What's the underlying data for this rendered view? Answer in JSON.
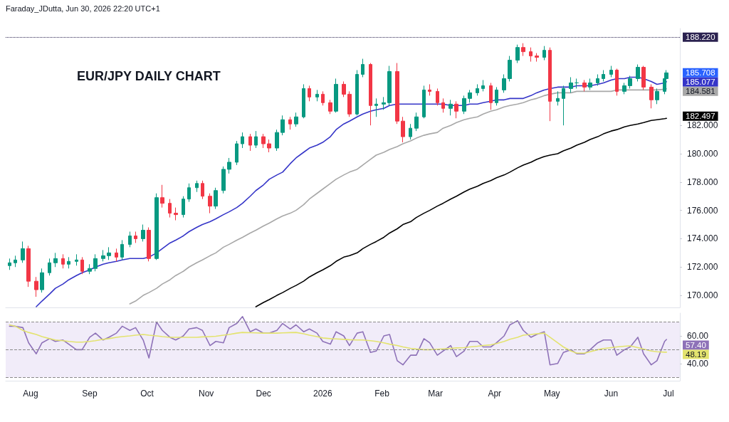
{
  "chart_data": [
    {
      "type": "candlestick",
      "title": "EUR/JPY DAILY CHART",
      "annotations": [
        "Faraday_JDutta, Jun 30, 2026 22:20 UTC+1",
        {
          "text": "185.708",
          "x": "2026-06-30",
          "y": 185.708
        },
        {
          "text": "185.077",
          "x": "2026-06-30",
          "y": 185.077
        },
        {
          "text": "184.581",
          "x": "2026-06-30",
          "y": 184.581
        },
        {
          "text": "182.497",
          "x": "2026-06-30",
          "y": 182.497
        }
      ],
      "x": [
        "2025-07-21",
        "2025-07-24",
        "2025-07-28",
        "2025-07-31",
        "2025-08-04",
        "2025-08-07",
        "2025-08-11",
        "2025-08-14",
        "2025-08-18",
        "2025-08-21",
        "2025-08-25",
        "2025-08-28",
        "2025-09-01",
        "2025-09-04",
        "2025-09-08",
        "2025-09-11",
        "2025-09-15",
        "2025-09-18",
        "2025-09-22",
        "2025-09-25",
        "2025-09-29",
        "2025-10-02",
        "2025-10-06",
        "2025-10-09",
        "2025-10-13",
        "2025-10-16",
        "2025-10-20",
        "2025-10-23",
        "2025-10-27",
        "2025-10-30",
        "2025-11-03",
        "2025-11-06",
        "2025-11-10",
        "2025-11-13",
        "2025-11-17",
        "2025-11-20",
        "2025-11-24",
        "2025-11-27",
        "2025-12-01",
        "2025-12-04",
        "2025-12-08",
        "2025-12-11",
        "2025-12-15",
        "2025-12-18",
        "2025-12-22",
        "2025-12-25",
        "2025-12-29",
        "2026-01-01",
        "2026-01-05",
        "2026-01-08",
        "2026-01-12",
        "2026-01-15",
        "2026-01-19",
        "2026-01-22",
        "2026-01-26",
        "2026-01-29",
        "2026-02-02",
        "2026-02-05",
        "2026-02-09",
        "2026-02-12",
        "2026-02-16",
        "2026-02-19",
        "2026-02-23",
        "2026-02-26",
        "2026-03-02",
        "2026-03-05",
        "2026-03-09",
        "2026-03-12",
        "2026-03-16",
        "2026-03-19",
        "2026-03-23",
        "2026-03-26",
        "2026-03-30",
        "2026-04-02",
        "2026-04-06",
        "2026-04-09",
        "2026-04-13",
        "2026-04-16",
        "2026-04-20",
        "2026-04-23",
        "2026-04-27",
        "2026-04-30",
        "2026-05-04",
        "2026-05-07",
        "2026-05-11",
        "2026-05-14",
        "2026-05-18",
        "2026-05-21",
        "2026-05-25",
        "2026-05-28",
        "2026-06-01",
        "2026-06-04",
        "2026-06-08",
        "2026-06-11",
        "2026-06-15",
        "2026-06-18",
        "2026-06-22",
        "2026-06-25",
        "2026-06-29",
        "2026-06-30"
      ],
      "ohlc": [
        [
          172.1,
          172.6,
          171.8,
          172.3
        ],
        [
          172.3,
          172.8,
          172.0,
          172.5
        ],
        [
          172.5,
          173.8,
          172.3,
          173.3
        ],
        [
          173.3,
          173.5,
          170.6,
          171.0
        ],
        [
          171.0,
          171.3,
          169.9,
          170.4
        ],
        [
          170.4,
          171.9,
          170.2,
          171.6
        ],
        [
          171.6,
          172.6,
          171.4,
          172.3
        ],
        [
          172.3,
          173.0,
          172.0,
          172.6
        ],
        [
          172.6,
          172.9,
          171.9,
          172.2
        ],
        [
          172.2,
          172.7,
          171.9,
          172.4
        ],
        [
          172.4,
          172.9,
          172.1,
          172.5
        ],
        [
          172.5,
          172.7,
          171.5,
          171.7
        ],
        [
          171.7,
          172.2,
          171.5,
          171.9
        ],
        [
          171.9,
          172.9,
          171.7,
          172.6
        ],
        [
          172.6,
          173.2,
          172.4,
          172.8
        ],
        [
          172.8,
          173.4,
          172.5,
          173.0
        ],
        [
          173.0,
          173.3,
          172.4,
          172.7
        ],
        [
          172.7,
          173.9,
          172.5,
          173.6
        ],
        [
          173.6,
          174.5,
          173.4,
          174.2
        ],
        [
          174.2,
          174.5,
          173.7,
          174.0
        ],
        [
          174.0,
          175.0,
          173.8,
          174.6
        ],
        [
          174.6,
          174.8,
          172.4,
          172.6
        ],
        [
          172.6,
          177.2,
          172.5,
          176.9
        ],
        [
          176.9,
          177.8,
          176.2,
          176.5
        ],
        [
          176.5,
          176.8,
          175.5,
          175.8
        ],
        [
          175.8,
          176.2,
          175.3,
          175.7
        ],
        [
          175.7,
          177.0,
          175.5,
          176.8
        ],
        [
          176.8,
          177.9,
          176.6,
          177.6
        ],
        [
          177.6,
          178.1,
          177.3,
          177.9
        ],
        [
          177.9,
          178.1,
          176.8,
          177.0
        ],
        [
          177.0,
          177.2,
          175.8,
          176.3
        ],
        [
          176.3,
          177.6,
          176.1,
          177.4
        ],
        [
          177.4,
          179.1,
          177.2,
          178.9
        ],
        [
          178.9,
          179.7,
          178.6,
          179.4
        ],
        [
          179.4,
          180.9,
          179.2,
          180.7
        ],
        [
          180.7,
          181.5,
          180.4,
          181.2
        ],
        [
          181.2,
          181.4,
          180.2,
          180.6
        ],
        [
          180.6,
          181.6,
          180.4,
          181.2
        ],
        [
          181.2,
          181.4,
          180.4,
          180.7
        ],
        [
          180.7,
          181.0,
          180.1,
          180.4
        ],
        [
          180.4,
          181.7,
          180.2,
          181.5
        ],
        [
          181.5,
          182.7,
          181.3,
          182.4
        ],
        [
          182.4,
          182.6,
          181.7,
          182.1
        ],
        [
          182.1,
          182.9,
          181.9,
          182.6
        ],
        [
          182.6,
          184.9,
          182.5,
          184.6
        ],
        [
          184.6,
          184.8,
          183.7,
          184.0
        ],
        [
          184.0,
          184.5,
          183.7,
          184.2
        ],
        [
          184.2,
          184.4,
          183.4,
          183.6
        ],
        [
          183.6,
          183.8,
          182.8,
          183.0
        ],
        [
          183.0,
          185.3,
          182.9,
          184.9
        ],
        [
          184.9,
          185.1,
          184.0,
          184.2
        ],
        [
          184.2,
          184.4,
          182.6,
          182.8
        ],
        [
          182.8,
          185.9,
          182.7,
          185.6
        ],
        [
          185.6,
          186.7,
          185.4,
          186.3
        ],
        [
          186.3,
          186.4,
          182.0,
          183.4
        ],
        [
          183.4,
          183.9,
          182.6,
          183.5
        ],
        [
          183.5,
          184.0,
          183.1,
          183.6
        ],
        [
          183.6,
          186.2,
          183.4,
          185.8
        ],
        [
          185.8,
          186.4,
          182.1,
          182.3
        ],
        [
          182.3,
          182.6,
          180.8,
          181.2
        ],
        [
          181.2,
          182.1,
          181.0,
          181.8
        ],
        [
          181.8,
          182.9,
          181.6,
          182.6
        ],
        [
          182.6,
          184.8,
          182.5,
          184.5
        ],
        [
          184.5,
          184.9,
          184.1,
          184.4
        ],
        [
          184.4,
          184.6,
          183.4,
          183.6
        ],
        [
          183.6,
          183.9,
          182.9,
          183.2
        ],
        [
          183.2,
          183.8,
          182.7,
          183.5
        ],
        [
          183.5,
          183.7,
          182.5,
          183.0
        ],
        [
          183.0,
          184.1,
          182.8,
          183.9
        ],
        [
          183.9,
          184.5,
          183.6,
          184.3
        ],
        [
          184.3,
          184.9,
          184.1,
          184.6
        ],
        [
          184.6,
          185.2,
          184.4,
          184.8
        ],
        [
          184.8,
          185.0,
          183.1,
          183.6
        ],
        [
          183.6,
          184.7,
          183.4,
          184.5
        ],
        [
          184.5,
          185.6,
          184.3,
          185.3
        ],
        [
          185.3,
          186.9,
          185.1,
          186.6
        ],
        [
          186.6,
          187.7,
          186.4,
          187.5
        ],
        [
          187.5,
          187.8,
          186.9,
          187.2
        ],
        [
          187.2,
          187.5,
          186.5,
          186.9
        ],
        [
          186.9,
          187.1,
          186.5,
          186.8
        ],
        [
          186.8,
          187.6,
          186.6,
          187.3
        ],
        [
          187.3,
          187.5,
          182.3,
          183.7
        ],
        [
          183.7,
          184.4,
          183.4,
          183.9
        ],
        [
          183.9,
          184.8,
          182.0,
          184.6
        ],
        [
          184.6,
          185.4,
          184.3,
          185.0
        ],
        [
          185.0,
          185.3,
          184.6,
          185.0
        ],
        [
          185.0,
          185.2,
          184.4,
          184.7
        ],
        [
          184.7,
          185.3,
          184.5,
          185.0
        ],
        [
          185.0,
          185.6,
          184.8,
          185.3
        ],
        [
          185.3,
          185.9,
          185.1,
          185.6
        ],
        [
          185.6,
          186.2,
          185.4,
          185.9
        ],
        [
          185.9,
          186.0,
          184.1,
          184.4
        ],
        [
          184.4,
          185.0,
          184.2,
          184.8
        ],
        [
          184.8,
          185.5,
          184.6,
          185.3
        ],
        [
          185.3,
          186.3,
          185.1,
          186.1
        ],
        [
          186.1,
          186.2,
          184.5,
          184.7
        ],
        [
          184.7,
          184.9,
          183.2,
          183.8
        ],
        [
          183.8,
          184.6,
          183.5,
          184.4
        ],
        [
          184.4,
          185.5,
          184.2,
          185.3
        ],
        [
          185.3,
          185.9,
          185.2,
          185.708
        ]
      ],
      "series": [
        {
          "type": "line",
          "color": "#3535c8",
          "values": [
            null,
            null,
            null,
            null,
            169.2,
            169.6,
            170.1,
            170.5,
            170.8,
            171.1,
            171.4,
            171.6,
            171.8,
            172.0,
            172.2,
            172.3,
            172.4,
            172.5,
            172.6,
            172.6,
            172.6,
            172.7,
            173.0,
            173.3,
            173.7,
            173.9,
            174.2,
            174.5,
            174.8,
            175.0,
            175.2,
            175.4,
            175.7,
            175.9,
            176.2,
            176.5,
            177.0,
            177.4,
            177.8,
            178.2,
            178.5,
            178.7,
            179.3,
            179.7,
            180.1,
            180.4,
            180.6,
            180.8,
            181.2,
            181.7,
            182.1,
            182.3,
            182.6,
            182.8,
            183.0,
            183.1,
            183.2,
            183.4,
            183.5,
            183.5,
            183.5,
            183.5,
            183.5,
            183.5,
            183.5,
            183.5,
            183.4,
            183.4,
            183.4,
            183.5,
            183.5,
            183.6,
            183.7,
            183.8,
            183.8,
            183.9,
            183.9,
            183.9,
            184.1,
            184.3,
            184.5,
            184.6,
            184.7,
            184.7,
            184.7,
            184.8,
            184.8,
            184.8,
            184.9,
            185.0,
            185.2,
            185.3,
            185.3,
            185.4,
            185.4,
            185.3,
            185.1,
            184.9,
            185.0,
            185.08
          ]
        },
        {
          "type": "line",
          "color": "#a8a8a8",
          "values": [
            null,
            null,
            null,
            null,
            null,
            null,
            null,
            null,
            null,
            null,
            null,
            null,
            null,
            null,
            null,
            null,
            null,
            null,
            169.4,
            169.6,
            170.0,
            170.2,
            170.5,
            170.8,
            171.1,
            171.4,
            171.7,
            172.0,
            172.3,
            172.5,
            172.8,
            173.0,
            173.4,
            173.6,
            173.9,
            174.1,
            174.4,
            174.6,
            174.9,
            175.1,
            175.4,
            175.6,
            175.8,
            176.0,
            176.4,
            176.8,
            177.2,
            177.5,
            177.9,
            178.2,
            178.5,
            178.7,
            178.9,
            179.2,
            179.6,
            179.9,
            180.1,
            180.3,
            180.5,
            180.7,
            180.9,
            181.1,
            181.3,
            181.4,
            181.5,
            181.8,
            182.0,
            182.2,
            182.4,
            182.5,
            182.6,
            182.8,
            183.0,
            183.1,
            183.3,
            183.4,
            183.5,
            183.6,
            183.8,
            183.9,
            184.1,
            184.2,
            184.3,
            184.3,
            184.3,
            184.4,
            184.4,
            184.4,
            184.4,
            184.4,
            184.4,
            184.5,
            184.5,
            184.5,
            184.5,
            184.5,
            184.5,
            184.5,
            184.55,
            184.58
          ]
        },
        {
          "type": "line",
          "color": "#000000",
          "values": [
            null,
            null,
            null,
            null,
            null,
            null,
            null,
            null,
            null,
            null,
            null,
            null,
            null,
            null,
            null,
            null,
            null,
            null,
            null,
            null,
            null,
            null,
            null,
            null,
            null,
            null,
            null,
            null,
            null,
            null,
            null,
            null,
            null,
            null,
            null,
            null,
            null,
            169.2,
            169.5,
            169.7,
            170.0,
            170.2,
            170.5,
            170.7,
            171.0,
            171.3,
            171.6,
            171.8,
            172.1,
            172.4,
            172.7,
            172.8,
            173.0,
            173.3,
            173.6,
            173.8,
            174.1,
            174.4,
            174.7,
            175.0,
            175.2,
            175.5,
            175.8,
            176.0,
            176.3,
            176.5,
            176.8,
            177.0,
            177.3,
            177.5,
            177.7,
            177.9,
            178.1,
            178.3,
            178.5,
            178.7,
            179.0,
            179.2,
            179.4,
            179.6,
            179.8,
            179.9,
            180.0,
            180.2,
            180.4,
            180.6,
            180.8,
            181.0,
            181.2,
            181.4,
            181.6,
            181.7,
            181.9,
            182.0,
            182.1,
            182.2,
            182.35,
            182.4,
            182.47,
            182.5
          ]
        }
      ],
      "xlim": [
        "2025-07-19",
        "2026-07-07"
      ],
      "ylim": [
        169.15,
        188.84
      ],
      "yticks": [
        {
          "value": 170,
          "label": "170.000"
        },
        {
          "value": 172,
          "label": "172.000"
        },
        {
          "value": 174,
          "label": "174.000"
        },
        {
          "value": 176,
          "label": "176.000"
        },
        {
          "value": 178,
          "label": "178.000"
        },
        {
          "value": 180,
          "label": "180.000"
        },
        {
          "value": 182,
          "label": "182.000"
        }
      ],
      "tick_labels": "y",
      "grid": false,
      "marker": "none",
      "ref_lines": [
        {
          "axis": "y",
          "value": 188.22,
          "label": "188.220",
          "line_style": "dotted",
          "color": "#2b2250"
        }
      ]
    },
    {
      "type": "line",
      "x": [
        "2025-07-21",
        "2025-07-24",
        "2025-07-28",
        "2025-07-31",
        "2025-08-04",
        "2025-08-07",
        "2025-08-11",
        "2025-08-14",
        "2025-08-18",
        "2025-08-21",
        "2025-08-25",
        "2025-08-28",
        "2025-09-01",
        "2025-09-04",
        "2025-09-08",
        "2025-09-11",
        "2025-09-15",
        "2025-09-18",
        "2025-09-22",
        "2025-09-25",
        "2025-09-29",
        "2025-10-02",
        "2025-10-06",
        "2025-10-09",
        "2025-10-13",
        "2025-10-16",
        "2025-10-20",
        "2025-10-23",
        "2025-10-27",
        "2025-10-30",
        "2025-11-03",
        "2025-11-06",
        "2025-11-10",
        "2025-11-13",
        "2025-11-17",
        "2025-11-20",
        "2025-11-24",
        "2025-11-27",
        "2025-12-01",
        "2025-12-04",
        "2025-12-08",
        "2025-12-11",
        "2025-12-15",
        "2025-12-18",
        "2025-12-22",
        "2025-12-25",
        "2025-12-29",
        "2026-01-01",
        "2026-01-05",
        "2026-01-08",
        "2026-01-12",
        "2026-01-15",
        "2026-01-19",
        "2026-01-22",
        "2026-01-26",
        "2026-01-29",
        "2026-02-02",
        "2026-02-05",
        "2026-02-09",
        "2026-02-12",
        "2026-02-16",
        "2026-02-19",
        "2026-02-23",
        "2026-02-26",
        "2026-03-02",
        "2026-03-05",
        "2026-03-09",
        "2026-03-12",
        "2026-03-16",
        "2026-03-19",
        "2026-03-23",
        "2026-03-26",
        "2026-03-30",
        "2026-04-02",
        "2026-04-06",
        "2026-04-09",
        "2026-04-13",
        "2026-04-16",
        "2026-04-20",
        "2026-04-23",
        "2026-04-27",
        "2026-04-30",
        "2026-05-04",
        "2026-05-07",
        "2026-05-11",
        "2026-05-14",
        "2026-05-18",
        "2026-05-21",
        "2026-05-25",
        "2026-05-28",
        "2026-06-01",
        "2026-06-04",
        "2026-06-08",
        "2026-06-11",
        "2026-06-15",
        "2026-06-18",
        "2026-06-22",
        "2026-06-25",
        "2026-06-29",
        "2026-06-30"
      ],
      "series": [
        {
          "color": "#8e72b8",
          "values": [
            67,
            67,
            66,
            55,
            47,
            55,
            58,
            56,
            57,
            54,
            50,
            50,
            59,
            62,
            57,
            59,
            62,
            67,
            64,
            66,
            57,
            44,
            70,
            64,
            59,
            57,
            60,
            65,
            66,
            64,
            53,
            56,
            55,
            66,
            69,
            74,
            63,
            65,
            62,
            62,
            64,
            69,
            65,
            68,
            63,
            65,
            62,
            56,
            54,
            63,
            60,
            53,
            62,
            63,
            48,
            49,
            60,
            61,
            42,
            39,
            46,
            46,
            58,
            55,
            46,
            49,
            53,
            45,
            49,
            56,
            56,
            52,
            52,
            55,
            60,
            68,
            71,
            64,
            59,
            61,
            63,
            39,
            40,
            48,
            50,
            47,
            47,
            50,
            55,
            57,
            57,
            46,
            50,
            52,
            59,
            47,
            39,
            42,
            56,
            57.4
          ]
        },
        {
          "color": "#e3e36e",
          "values": [
            68,
            67,
            64,
            62.5,
            61,
            59.5,
            58,
            57,
            56.5,
            56,
            55.5,
            55.5,
            56,
            56.5,
            57.5,
            58,
            59,
            59.5,
            60,
            60.5,
            61,
            60.5,
            60,
            59.5,
            59,
            59,
            59,
            59,
            59,
            59.3,
            59.5,
            59.7,
            60.5,
            61,
            62,
            62.5,
            62.3,
            62.2,
            62,
            62,
            62,
            62.2,
            62.4,
            62.5,
            61.5,
            60.5,
            59.5,
            58.5,
            58,
            57.8,
            57.5,
            57.2,
            57,
            57,
            56.5,
            56,
            55,
            54,
            53,
            52,
            51,
            50.5,
            50,
            50,
            50.3,
            50.6,
            51,
            51.3,
            51.5,
            52,
            52.5,
            53,
            53.5,
            54.5,
            56,
            57.5,
            59,
            60.5,
            61,
            61.5,
            62,
            59,
            55,
            52,
            49,
            47.5,
            47.5,
            48.5,
            50,
            50.8,
            51.5,
            52,
            52.5,
            52.8,
            51.5,
            50.5,
            49,
            48.5,
            48.2,
            48.19
          ]
        }
      ],
      "xlim": [
        "2025-07-19",
        "2026-07-07"
      ],
      "ylim": [
        27.5,
        76.5
      ],
      "xticks": [
        {
          "value": "2025-08-01",
          "label": "Aug"
        },
        {
          "value": "2025-09-01",
          "label": "Sep"
        },
        {
          "value": "2025-10-01",
          "label": "Oct"
        },
        {
          "value": "2025-11-01",
          "label": "Nov"
        },
        {
          "value": "2025-12-01",
          "label": "Dec"
        },
        {
          "value": "2026-01-01",
          "label": "2026"
        },
        {
          "value": "2026-02-01",
          "label": "Feb"
        },
        {
          "value": "2026-03-01",
          "label": "Mar"
        },
        {
          "value": "2026-04-01",
          "label": "Apr"
        },
        {
          "value": "2026-05-01",
          "label": "May"
        },
        {
          "value": "2026-06-01",
          "label": "Jun"
        },
        {
          "value": "2026-07-01",
          "label": "Jul"
        }
      ],
      "yticks": [
        {
          "value": 40,
          "label": "40.00"
        },
        {
          "value": 60,
          "label": "60.00"
        }
      ],
      "grid": false,
      "marker": "none",
      "bands": [
        {
          "axis": "y",
          "from": 30,
          "to": 70,
          "color": "#f1ecf9"
        }
      ],
      "ref_lines": [
        {
          "axis": "y",
          "value": 70,
          "line_style": "dashed",
          "color": "#8a8a8a"
        },
        {
          "axis": "y",
          "value": 50,
          "line_style": "dashed",
          "color": "#8a8a8a"
        },
        {
          "axis": "y",
          "value": 30,
          "line_style": "dashed",
          "color": "#8a8a8a"
        }
      ],
      "annotations": [
        {
          "text": "57.40",
          "x": "2026-06-30",
          "y": 57.4
        },
        {
          "text": "48.19",
          "x": "2026-06-30",
          "y": 48.19
        }
      ]
    }
  ]
}
